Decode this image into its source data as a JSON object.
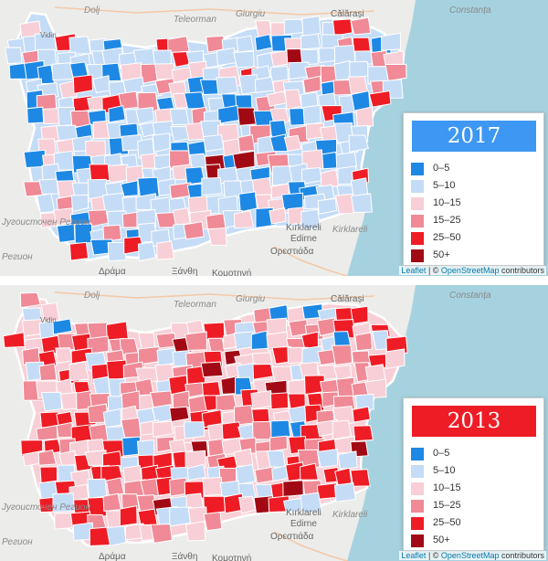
{
  "maps": [
    {
      "year": "2017",
      "title_color": "#3d97f3",
      "places": {
        "dolj": "Dolj",
        "teleorman": "Teleorman",
        "giurgiu": "Giurgiu",
        "constanta": "Constanța",
        "calarasi": "Călărași",
        "vidin": "Vidin",
        "kirklareli_a": "Kırklareli",
        "kirklareli_b": "Kirklareli",
        "edirne": "Edirne",
        "orestiada": "Ορεστιάδα",
        "southwest_region": "Југоисточен Регион",
        "region": "Регион",
        "drama": "Δράμα",
        "xanthi": "Ξάνθη",
        "komotini": "Κομοτηνή"
      },
      "attribution": {
        "leaflet": "Leaflet",
        "separator": " | © ",
        "osm": "OpenStreetMap",
        "contributors": " contributors"
      }
    },
    {
      "year": "2013",
      "title_color": "#ee1c25",
      "places": {
        "dolj": "Dolj",
        "teleorman": "Teleorman",
        "giurgiu": "Giurgiu",
        "constanta": "Constanța",
        "calarasi": "Călărași",
        "vidin": "Vidin",
        "kirklareli_a": "Kırklareli",
        "kirklareli_b": "Kirklareli",
        "edirne": "Edirne",
        "orestiada": "Ορεστιάδα",
        "southwest_region": "Југоисточен Регион",
        "region": "Регион",
        "drama": "Δράμα",
        "xanthi": "Ξάνθη",
        "komotini": "Κομοτηνή"
      },
      "attribution": {
        "leaflet": "Leaflet",
        "separator": " | © ",
        "osm": "OpenStreetMap",
        "contributors": " contributors"
      }
    }
  ],
  "legend": [
    {
      "label": "0–5",
      "color": "#1e88e5"
    },
    {
      "label": "5–10",
      "color": "#c5dcf7"
    },
    {
      "label": "10–15",
      "color": "#f8cfd6"
    },
    {
      "label": "15–25",
      "color": "#ef8a96"
    },
    {
      "label": "25–50",
      "color": "#ee1c25"
    },
    {
      "label": "50+",
      "color": "#a10a14"
    }
  ],
  "colors": {
    "sea": "#a6d2df",
    "land": "#ececea",
    "border": "#ffffff"
  }
}
